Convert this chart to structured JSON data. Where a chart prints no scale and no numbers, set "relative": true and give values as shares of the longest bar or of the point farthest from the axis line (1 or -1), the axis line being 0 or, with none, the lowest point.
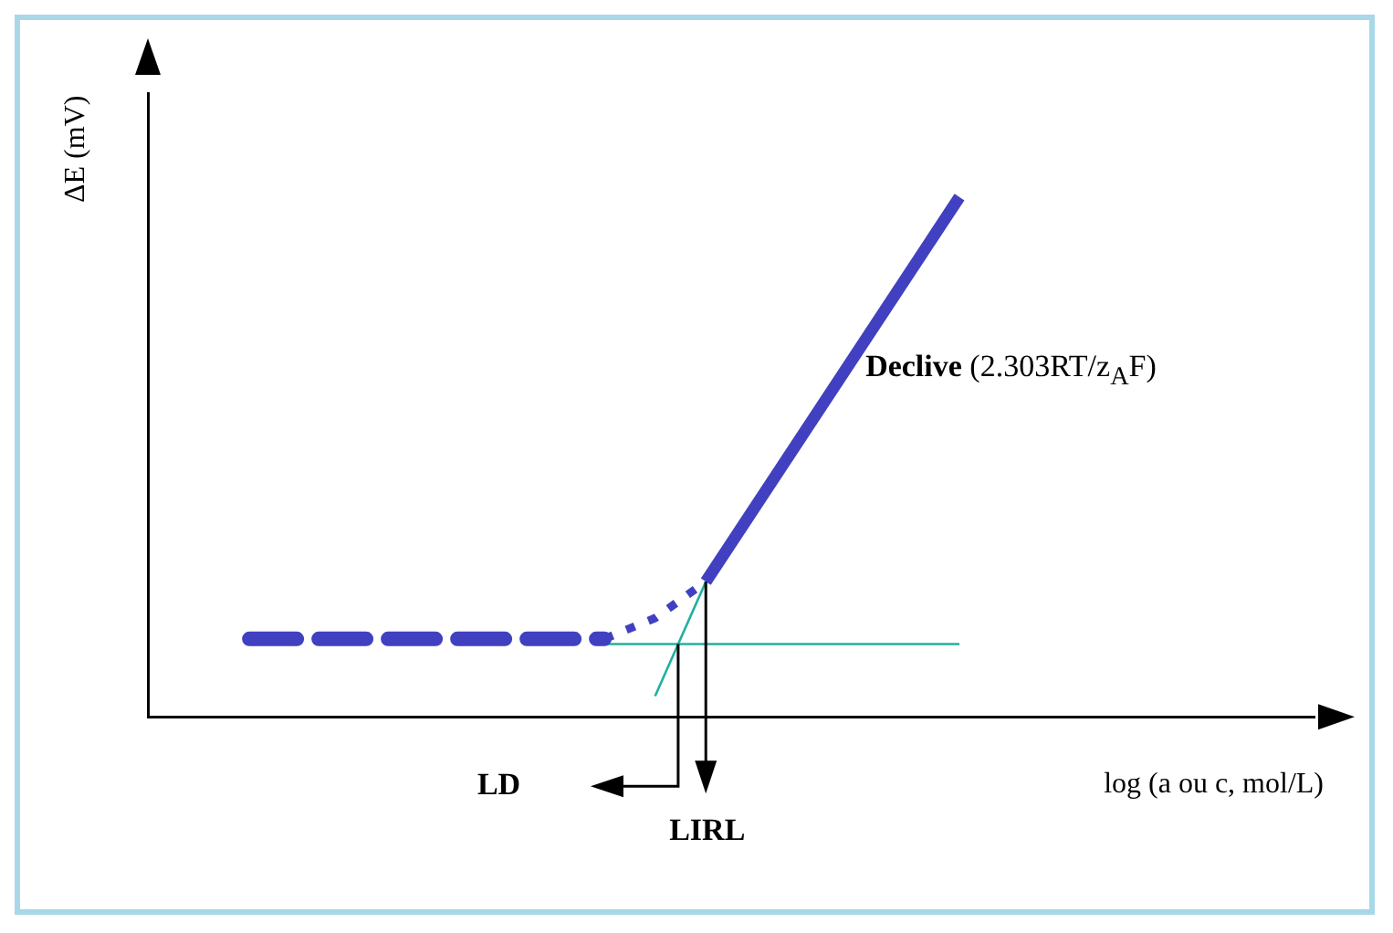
{
  "chart_data": {
    "type": "line",
    "relative": true,
    "xlabel": "log (a ou c, mol/L)",
    "ylabel": "ΔE (mV)",
    "categories": [
      null,
      null,
      null,
      null,
      null,
      null,
      null,
      null,
      null,
      null,
      null,
      null,
      null,
      null,
      null,
      null,
      null,
      null,
      null,
      null,
      null,
      null,
      null,
      null
    ],
    "series": [
      {
        "color": "#4040c0",
        "line_style": "dashed",
        "values": [
          null,
          null,
          0.15,
          0.15,
          0.15,
          0.15,
          0.15,
          0.15,
          0.15,
          0.15,
          null,
          null,
          null,
          null,
          null,
          null,
          null,
          null,
          null,
          null,
          null,
          null,
          null,
          null
        ]
      },
      {
        "color": "#4040c0",
        "line_style": "dotted",
        "values": [
          null,
          null,
          null,
          null,
          null,
          null,
          null,
          null,
          null,
          0.15,
          0.19,
          0.26,
          null,
          null,
          null,
          null,
          null,
          null,
          null,
          null,
          null,
          null,
          null,
          null
        ]
      },
      {
        "color": "#4040c0",
        "line_style": "solid",
        "values": [
          null,
          null,
          null,
          null,
          null,
          null,
          null,
          null,
          null,
          null,
          null,
          0.26,
          null,
          null,
          null,
          null,
          1,
          null,
          null,
          null,
          null,
          null,
          null,
          null
        ]
      },
      {
        "color": "#20b0a0",
        "line_style": "solid",
        "values": [
          null,
          null,
          null,
          null,
          null,
          null,
          null,
          null,
          null,
          0.14,
          0.14,
          0.14,
          0.14,
          0.14,
          0.14,
          0.14,
          0.14,
          null,
          null,
          null,
          null,
          null,
          null,
          null
        ]
      },
      {
        "color": "#20b0a0",
        "line_style": "solid",
        "values": [
          null,
          null,
          null,
          null,
          null,
          null,
          null,
          null,
          null,
          null,
          0.04,
          0.26,
          null,
          null,
          null,
          null,
          null,
          null,
          null,
          null,
          null,
          null,
          null,
          null
        ]
      }
    ],
    "annotations": [
      "Declive (2.303RT/z$_{A}$F)",
      "LD",
      "LIRL"
    ],
    "legend": false,
    "grid": false,
    "marker": "none"
  }
}
